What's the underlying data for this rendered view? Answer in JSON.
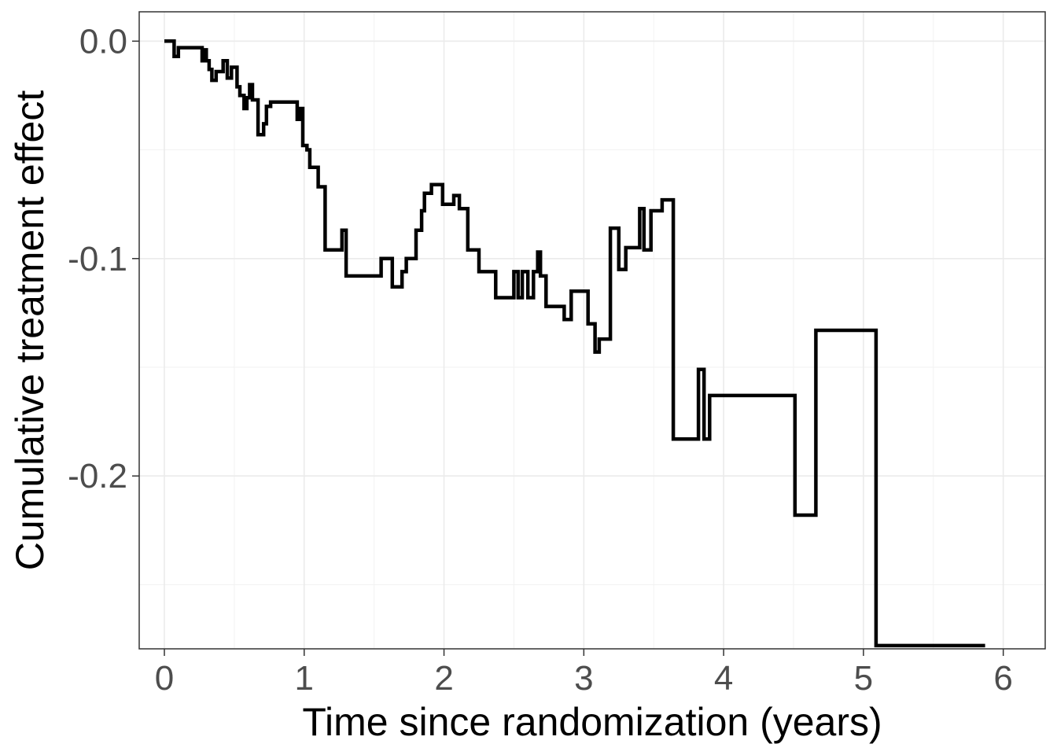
{
  "chart_data": {
    "type": "line",
    "step": true,
    "xlabel": "Time since randomization (years)",
    "ylabel": "Cumulative treatment effect",
    "xlim": [
      -0.18,
      6.3
    ],
    "ylim": [
      -0.2795,
      0.0135
    ],
    "xticks": [
      0,
      1,
      2,
      3,
      4,
      5,
      6
    ],
    "xtick_labels": [
      "0",
      "1",
      "2",
      "3",
      "4",
      "5",
      "6"
    ],
    "yticks": [
      0.0,
      -0.1,
      -0.2
    ],
    "ytick_labels": [
      "0.0",
      "-0.1",
      "-0.2"
    ],
    "grid": true,
    "legend": "none",
    "line_color": "#000000",
    "series": [
      {
        "x": [
          0.0,
          0.07,
          0.1,
          0.27,
          0.29,
          0.3,
          0.32,
          0.34,
          0.37,
          0.42,
          0.45,
          0.48,
          0.52,
          0.54,
          0.57,
          0.59,
          0.61,
          0.63,
          0.67,
          0.71,
          0.73,
          0.76,
          0.79,
          0.95,
          0.97,
          0.99,
          1.02,
          1.04,
          1.1,
          1.15,
          1.18,
          1.27,
          1.3,
          1.34,
          1.55,
          1.63,
          1.7,
          1.73,
          1.8,
          1.84,
          1.86,
          1.91,
          1.99,
          2.07,
          2.11,
          2.17,
          2.25,
          2.37,
          2.5,
          2.53,
          2.56,
          2.6,
          2.64,
          2.67,
          2.69,
          2.73,
          2.86,
          2.91,
          3.03,
          3.08,
          3.11,
          3.19,
          3.25,
          3.3,
          3.4,
          3.43,
          3.48,
          3.56,
          3.64,
          3.82,
          3.86,
          3.9,
          3.92,
          4.51,
          4.66,
          5.09,
          5.87
        ],
        "y": [
          0.0,
          -0.007,
          -0.003,
          -0.009,
          -0.004,
          -0.009,
          -0.013,
          -0.018,
          -0.014,
          -0.009,
          -0.017,
          -0.012,
          -0.021,
          -0.025,
          -0.031,
          -0.026,
          -0.02,
          -0.027,
          -0.043,
          -0.038,
          -0.03,
          -0.028,
          -0.028,
          -0.036,
          -0.031,
          -0.048,
          -0.05,
          -0.058,
          -0.067,
          -0.096,
          -0.096,
          -0.087,
          -0.108,
          -0.108,
          -0.1,
          -0.113,
          -0.106,
          -0.1,
          -0.087,
          -0.078,
          -0.07,
          -0.066,
          -0.075,
          -0.071,
          -0.077,
          -0.096,
          -0.106,
          -0.118,
          -0.106,
          -0.118,
          -0.106,
          -0.118,
          -0.106,
          -0.097,
          -0.108,
          -0.122,
          -0.128,
          -0.115,
          -0.13,
          -0.143,
          -0.137,
          -0.086,
          -0.105,
          -0.095,
          -0.077,
          -0.096,
          -0.078,
          -0.073,
          -0.183,
          -0.151,
          -0.183,
          -0.163,
          -0.163,
          -0.218,
          -0.133,
          -0.278,
          -0.278
        ]
      }
    ]
  }
}
